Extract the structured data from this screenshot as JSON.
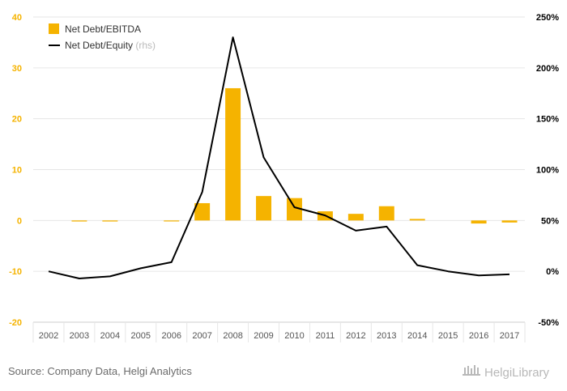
{
  "chart_data": {
    "type": "bar",
    "categories": [
      "2002",
      "2003",
      "2004",
      "2005",
      "2006",
      "2007",
      "2008",
      "2009",
      "2010",
      "2011",
      "2012",
      "2013",
      "2014",
      "2015",
      "2016",
      "2017"
    ],
    "series": [
      {
        "name": "Net Debt/EBITDA",
        "type": "bar",
        "axis": "left",
        "color": "#f5b300",
        "values": [
          0,
          -0.2,
          -0.2,
          0,
          -0.1,
          3.4,
          26.0,
          4.8,
          4.4,
          1.8,
          1.3,
          2.8,
          0.3,
          0,
          -0.6,
          -0.4
        ]
      },
      {
        "name": "Net Debt/Equity",
        "name_suffix": "(rhs)",
        "type": "line",
        "axis": "right",
        "color": "#000000",
        "values": [
          0,
          -7,
          -5,
          3,
          9,
          78,
          230,
          112,
          63,
          55,
          40,
          44,
          6,
          0,
          -4,
          -3
        ]
      }
    ],
    "y_left": {
      "min": -20,
      "max": 40,
      "ticks": [
        "40",
        "30",
        "20",
        "10",
        "0",
        "-10",
        "-20"
      ]
    },
    "y_right": {
      "min": -50,
      "max": 250,
      "ticks": [
        "250%",
        "200%",
        "150%",
        "100%",
        "50%",
        "0%",
        "-50%"
      ]
    },
    "grid": true,
    "legend_position": "top-left",
    "title": "",
    "xlabel": "",
    "ylabel": ""
  },
  "footer": {
    "source": "Source: Company Data, Helgi Analytics",
    "brand": "HelgiLibrary",
    "brand_icon": "library-building-icon"
  },
  "colors": {
    "left_axis_text": "#f5b300",
    "right_axis_text": "#000000",
    "grid": "#e6e6e6"
  }
}
